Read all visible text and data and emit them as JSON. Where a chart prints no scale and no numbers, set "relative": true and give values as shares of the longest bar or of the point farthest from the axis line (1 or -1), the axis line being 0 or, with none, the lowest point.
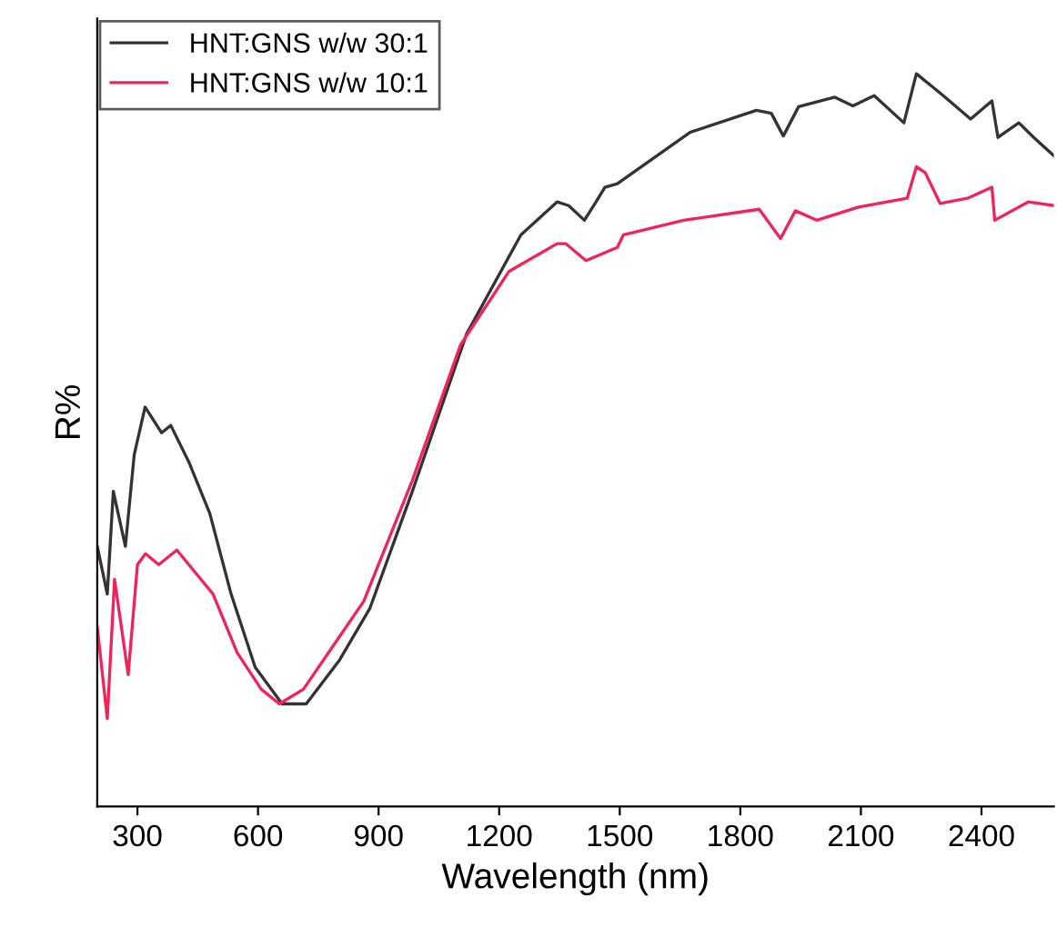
{
  "chart_data": {
    "type": "line",
    "relative": true,
    "xlabel": "Wavelength (nm)",
    "ylabel": "R%",
    "xlim": [
      200,
      2580
    ],
    "xticks": [
      300,
      600,
      900,
      1200,
      1500,
      1800,
      2100,
      2400
    ],
    "legend": "top left",
    "grid": false,
    "marker": "none",
    "line_style": "solid",
    "series": [
      {
        "name": "HNT:GNS w/w 30:1",
        "color": "#333333",
        "x": [
          200,
          225,
          240,
          270,
          292,
          319,
          360,
          383,
          428,
          480,
          533,
          593,
          660,
          720,
          803,
          878,
          984,
          1119,
          1254,
          1344,
          1373,
          1412,
          1441,
          1463,
          1494,
          1675,
          1840,
          1877,
          1907,
          1945,
          2035,
          2080,
          2133,
          2207,
          2238,
          2305,
          2373,
          2426,
          2441,
          2493,
          2530,
          2580
        ],
        "values": [
          0.355,
          0.29,
          0.43,
          0.355,
          0.48,
          0.545,
          0.51,
          0.52,
          0.47,
          0.4,
          0.29,
          0.19,
          0.14,
          0.14,
          0.2,
          0.27,
          0.43,
          0.645,
          0.78,
          0.825,
          0.82,
          0.8,
          0.825,
          0.845,
          0.85,
          0.92,
          0.95,
          0.946,
          0.915,
          0.955,
          0.968,
          0.956,
          0.97,
          0.933,
          1.0,
          0.97,
          0.938,
          0.963,
          0.913,
          0.933,
          0.913,
          0.888
        ]
      },
      {
        "name": "HNT:GNS w/w 10:1",
        "color": "#f0245a",
        "x": [
          200,
          225,
          243,
          277,
          300,
          320,
          353,
          398,
          488,
          548,
          608,
          653,
          713,
          788,
          863,
          984,
          1104,
          1224,
          1344,
          1366,
          1416,
          1494,
          1509,
          1659,
          1847,
          1900,
          1937,
          1990,
          2094,
          2215,
          2238,
          2260,
          2297,
          2365,
          2426,
          2433,
          2516,
          2580
        ],
        "values": [
          0.245,
          0.12,
          0.31,
          0.18,
          0.33,
          0.345,
          0.33,
          0.35,
          0.29,
          0.21,
          0.16,
          0.14,
          0.16,
          0.22,
          0.28,
          0.445,
          0.63,
          0.73,
          0.768,
          0.768,
          0.745,
          0.763,
          0.78,
          0.8,
          0.815,
          0.775,
          0.813,
          0.8,
          0.818,
          0.83,
          0.873,
          0.865,
          0.823,
          0.83,
          0.845,
          0.8,
          0.825,
          0.82
        ]
      }
    ]
  }
}
